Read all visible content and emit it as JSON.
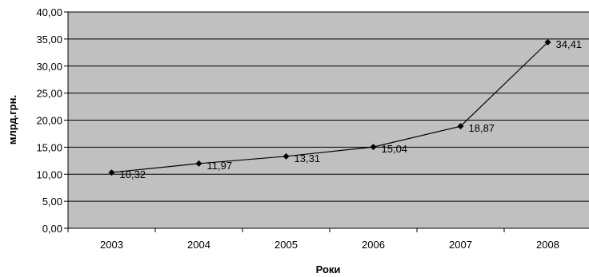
{
  "chart_data": {
    "type": "line",
    "categories": [
      "2003",
      "2004",
      "2005",
      "2006",
      "2007",
      "2008"
    ],
    "series": [
      {
        "values": [
          10.32,
          11.97,
          13.31,
          15.04,
          18.87,
          34.41
        ]
      }
    ],
    "data_labels": [
      "10,32",
      "11,97",
      "13,31",
      "15,04",
      "18,87",
      "34,41"
    ],
    "y_ticks": [
      "0,00",
      "5,00",
      "10,00",
      "15,00",
      "20,00",
      "25,00",
      "30,00",
      "35,00",
      "40,00"
    ],
    "ylim": [
      0,
      40
    ],
    "xlabel": "Роки",
    "ylabel": "млрд.грн.",
    "grid": true,
    "legend": "none",
    "colors": {
      "plot_background": "#c0c0c0",
      "gridline": "#000000",
      "series_line": "#000000",
      "marker": "#000000"
    }
  }
}
